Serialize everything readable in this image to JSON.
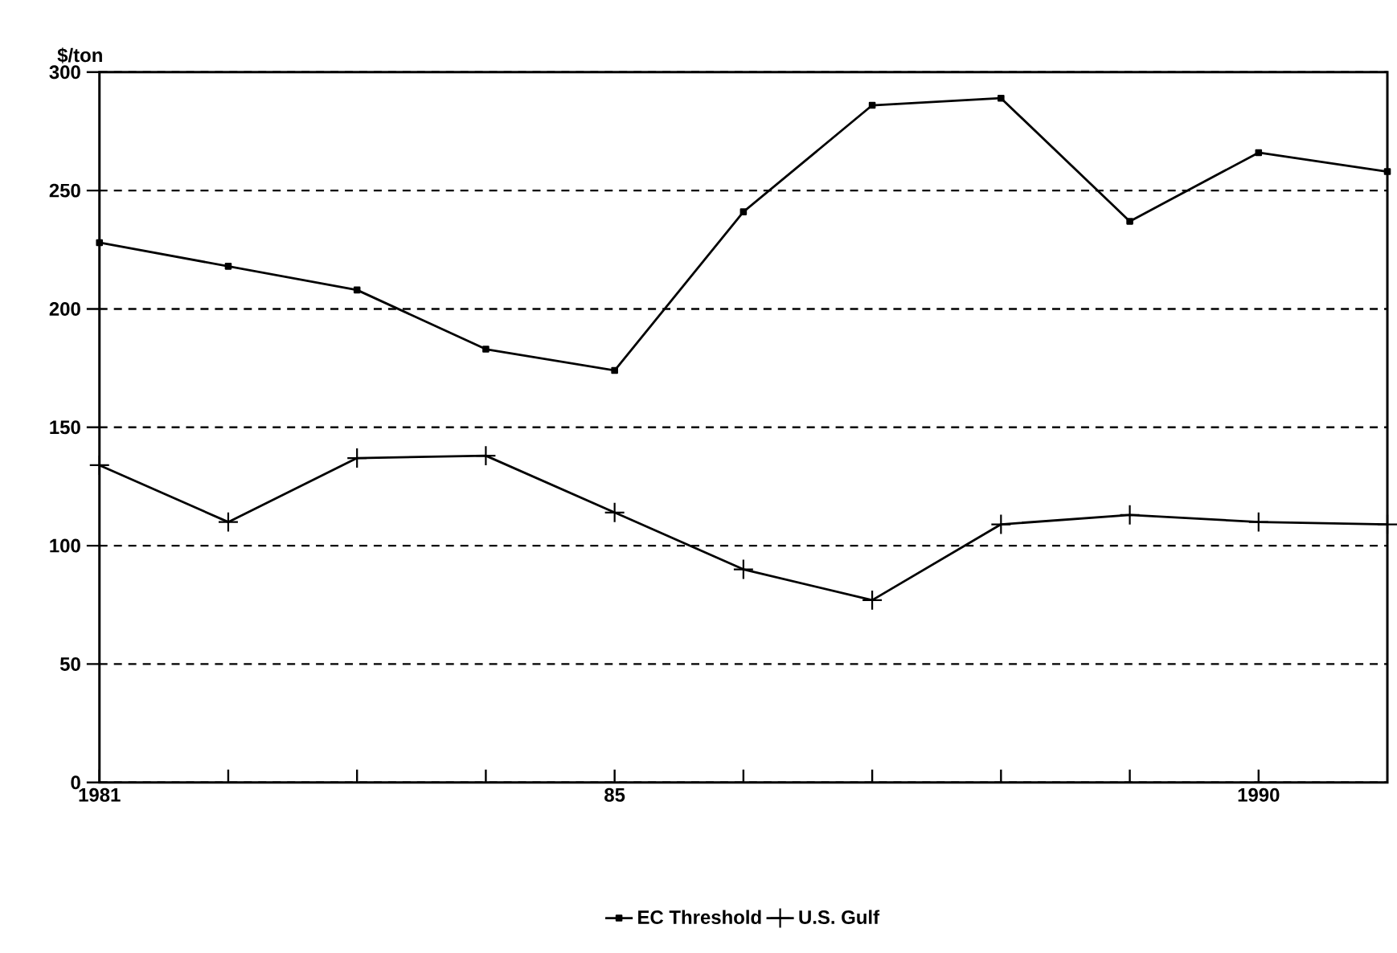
{
  "chart_data": {
    "type": "line",
    "ylabel": "$/ton",
    "x": [
      1981,
      1982,
      1983,
      1984,
      1985,
      1986,
      1987,
      1988,
      1989,
      1990,
      1991
    ],
    "series": [
      {
        "name": "EC Threshold",
        "color": "#000000",
        "marker": "square",
        "values": [
          228,
          218,
          208,
          183,
          174,
          241,
          286,
          289,
          237,
          266,
          258
        ]
      },
      {
        "name": "U.S. Gulf",
        "color": "#000000",
        "marker": "cross",
        "values": [
          134,
          110,
          137,
          138,
          114,
          90,
          77,
          109,
          113,
          110,
          109
        ]
      }
    ],
    "xlim": [
      1981,
      1991
    ],
    "ylim": [
      0,
      300
    ],
    "xticks": [
      1981,
      {
        "value": 1982,
        "label": null
      },
      {
        "value": 1983,
        "label": null
      },
      {
        "value": 1984,
        "label": null
      },
      {
        "value": 1985,
        "label": "85"
      },
      {
        "value": 1986,
        "label": null
      },
      {
        "value": 1987,
        "label": null
      },
      {
        "value": 1988,
        "label": null
      },
      {
        "value": 1989,
        "label": null
      },
      1990
    ],
    "yticks": [
      0,
      50,
      100,
      150,
      200,
      250,
      300
    ],
    "grid": "y",
    "legend": "bottom",
    "line_style": "solid"
  }
}
